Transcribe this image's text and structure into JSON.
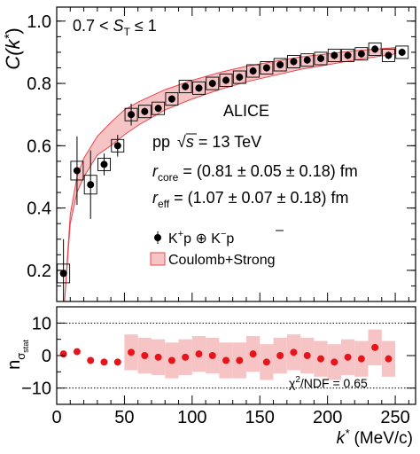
{
  "chart_data": [
    {
      "panel": "top",
      "type": "scatter",
      "ylabel_main": "C(k",
      "ylabel_star": "*",
      "ylabel_close": ")",
      "xlim": [
        0,
        265
      ],
      "ylim": [
        0.1,
        1.045
      ],
      "yticks": [
        0.2,
        0.4,
        0.6,
        0.8,
        1.0
      ],
      "ytick_labels": [
        "0.2",
        "0.4",
        "0.6",
        "0.8",
        "1.0"
      ],
      "annotations": {
        "range_pre": "0.7 < ",
        "range_S": "S",
        "range_T": "T",
        "range_post": " ≤ 1",
        "experiment": "ALICE",
        "system_pp": "pp",
        "system_sqrt": "√",
        "system_s": "s",
        "system_post": " = 13 TeV",
        "rcore_r": "r",
        "rcore_sub": "core",
        "rcore_value": " = (0.81 ± 0.05 ±  0.18) fm",
        "reff_r": "r",
        "reff_sub": "eff",
        "reff_value": "  = (1.07 ± 0.07 ± 0.18) fm"
      },
      "legend": {
        "placement": "center-right",
        "data_K": "K",
        "data_plus": "+",
        "data_mid": "p ⊕ K",
        "data_minus": "−",
        "data_pbar": "p",
        "model": "Coulomb+Strong"
      },
      "series": [
        {
          "name": "K+p ⊕ K−p̄",
          "x": [
            5,
            15,
            25,
            35,
            45,
            55,
            65,
            75,
            85,
            95,
            105,
            115,
            125,
            135,
            145,
            155,
            165,
            175,
            185,
            195,
            205,
            215,
            225,
            235,
            245,
            255
          ],
          "y": [
            0.19,
            0.52,
            0.475,
            0.54,
            0.6,
            0.7,
            0.71,
            0.72,
            0.75,
            0.79,
            0.785,
            0.8,
            0.81,
            0.82,
            0.84,
            0.85,
            0.86,
            0.87,
            0.875,
            0.88,
            0.89,
            0.89,
            0.895,
            0.91,
            0.89,
            0.9
          ]
        }
      ],
      "band": {
        "name": "Coulomb+Strong",
        "color": "#e8474c",
        "fill": "#f7c4c5",
        "x": [
          5,
          10,
          15,
          20,
          30,
          40,
          50,
          60,
          70,
          80,
          100,
          120,
          140,
          160,
          180,
          200,
          220,
          250
        ],
        "lower": [
          0.05,
          0.35,
          0.45,
          0.5,
          0.57,
          0.6,
          0.635,
          0.665,
          0.69,
          0.715,
          0.75,
          0.78,
          0.805,
          0.825,
          0.845,
          0.86,
          0.875,
          0.895
        ],
        "upper": [
          0.05,
          0.38,
          0.5,
          0.56,
          0.63,
          0.675,
          0.715,
          0.74,
          0.76,
          0.78,
          0.81,
          0.835,
          0.855,
          0.87,
          0.885,
          0.895,
          0.905,
          0.915
        ]
      }
    },
    {
      "panel": "bottom",
      "type": "scatter",
      "ylabel_n": "n",
      "ylabel_sigma": "σ",
      "ylabel_stat": "stat",
      "xlabel_k": "k",
      "xlabel_star": "*",
      "xlabel_unit": " (MeV/c)",
      "xlim": [
        0,
        265
      ],
      "ylim": [
        -15,
        15
      ],
      "yticks": [
        -10,
        0,
        10
      ],
      "ytick_labels": [
        "−10",
        "0",
        "10"
      ],
      "xticks": [
        0,
        50,
        100,
        150,
        200,
        250
      ],
      "xtick_labels": [
        "0",
        "50",
        "100",
        "150",
        "200",
        "250"
      ],
      "dotted_lines": [
        -10,
        10
      ],
      "chi2_label": "χ",
      "chi2_sup": "2",
      "chi2_value": "/NDF = 0.65",
      "series": [
        {
          "name": "n_sigma_stat",
          "x": [
            5,
            15,
            25,
            35,
            45,
            55,
            65,
            75,
            85,
            95,
            105,
            115,
            125,
            135,
            145,
            155,
            165,
            175,
            185,
            195,
            205,
            215,
            225,
            235,
            245
          ],
          "y": [
            0.5,
            1.2,
            -1.5,
            -2.0,
            -2.0,
            1.0,
            0.0,
            -0.5,
            -1.5,
            -0.5,
            0.5,
            0.0,
            -1.5,
            -1.5,
            0.5,
            -2.0,
            0.0,
            1.0,
            0.0,
            -1.0,
            -2.0,
            -0.5,
            -1.0,
            2.5,
            -1.0
          ]
        }
      ],
      "band_x": [
        55,
        245
      ],
      "band_half_width": 5,
      "band_color": "#f7c4c5",
      "point_color": "#e8141c"
    }
  ]
}
